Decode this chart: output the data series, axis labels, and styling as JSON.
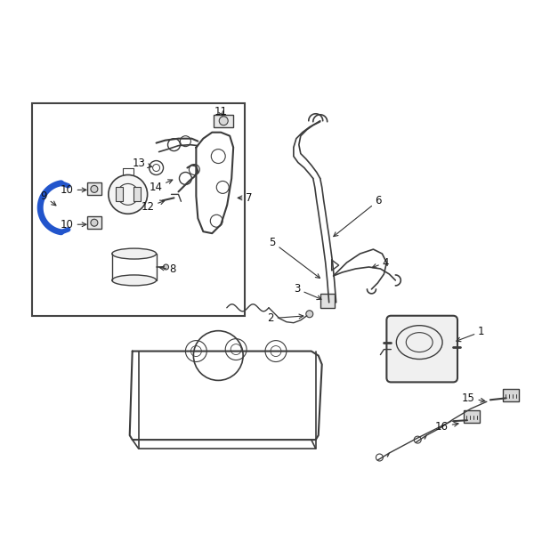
{
  "bg_color": "#ffffff",
  "line_color": "#3c3c3c",
  "box_border_color": "#444444",
  "highlight_color": "#2255cc",
  "label_color": "#111111",
  "label_fontsize": 8.5,
  "fig_width": 6.0,
  "fig_height": 6.0
}
